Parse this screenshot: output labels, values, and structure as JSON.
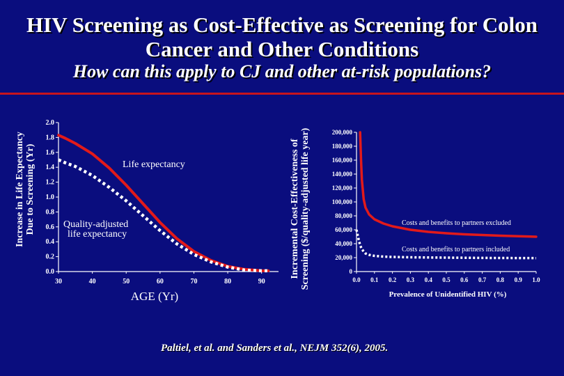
{
  "slide": {
    "title_line1": "HIV Screening as Cost-Effective as Screening for Colon",
    "title_line2": "Cancer and Other Conditions",
    "subtitle": "How can this apply to CJ and other at-risk populations?",
    "citation": "Paltiel, et al. and Sanders et al., NEJM 352(6), 2005.",
    "colors": {
      "background": "#0a0d7e",
      "accent_rule": "#c8141e",
      "red_line": "#e21a1a",
      "dashed_line": "#ffffff"
    }
  },
  "chart_data": [
    {
      "type": "line",
      "title": "",
      "xlabel": "AGE (Yr)",
      "ylabel_line1": "Increase in Life Expectancy",
      "ylabel_line2": "Due to Screening (Yr)",
      "xlim": [
        30,
        95
      ],
      "ylim": [
        0,
        2.0
      ],
      "xticks": [
        30,
        40,
        50,
        60,
        70,
        80,
        90
      ],
      "xtick_labels": [
        "30",
        "40",
        "50",
        "60",
        "70",
        "80",
        "90"
      ],
      "yticks": [
        0,
        0.2,
        0.4,
        0.6,
        0.8,
        1.0,
        1.2,
        1.4,
        1.6,
        1.8,
        2.0
      ],
      "ytick_labels": [
        "0.0",
        "0.2",
        "0.4",
        "0.6",
        "0.8",
        "1.0",
        "1.2",
        "1.4",
        "1.6",
        "1.8",
        "2.0"
      ],
      "series": [
        {
          "name": "Life expectancy",
          "style": "solid-red",
          "x": [
            30,
            32,
            35,
            40,
            45,
            50,
            55,
            60,
            65,
            70,
            75,
            80,
            85,
            90,
            92
          ],
          "y": [
            1.83,
            1.79,
            1.72,
            1.58,
            1.39,
            1.16,
            0.91,
            0.66,
            0.44,
            0.27,
            0.15,
            0.07,
            0.03,
            0.01,
            0.01
          ]
        },
        {
          "name": "Quality-adjusted life expectancy",
          "style": "dashed-white",
          "x": [
            30,
            32,
            35,
            40,
            45,
            50,
            55,
            60,
            65,
            70,
            75,
            80,
            85,
            90,
            92
          ],
          "y": [
            1.5,
            1.46,
            1.41,
            1.29,
            1.13,
            0.95,
            0.75,
            0.55,
            0.37,
            0.23,
            0.13,
            0.06,
            0.02,
            0.01,
            0.01
          ]
        }
      ],
      "annotations": {
        "life_expectancy": "Life expectancy",
        "qale_line1": "Quality-adjusted",
        "qale_line2": "life expectancy"
      }
    },
    {
      "type": "line",
      "title": "",
      "xlabel": "Prevalence of Unidentified HIV (%)",
      "ylabel_line1": "Incremental Cost-Effectiveness of",
      "ylabel_line2": "Screening ($/quality-adjusted life year)",
      "xlim": [
        0,
        1.0
      ],
      "ylim": [
        0,
        200000
      ],
      "xticks": [
        0,
        0.1,
        0.2,
        0.3,
        0.4,
        0.5,
        0.6,
        0.7,
        0.8,
        0.9,
        1.0
      ],
      "xtick_labels": [
        "0.0",
        "0.1",
        "0.2",
        "0.3",
        "0.4",
        "0.5",
        "0.6",
        "0.7",
        "0.8",
        "0.9",
        "1.0"
      ],
      "yticks": [
        0,
        20000,
        40000,
        60000,
        80000,
        100000,
        120000,
        140000,
        160000,
        180000,
        200000
      ],
      "ytick_labels": [
        "0",
        "20,000",
        "40,000",
        "60,000",
        "80,000",
        "100,000",
        "120,000",
        "140,000",
        "160,000",
        "180,000",
        "200,000"
      ],
      "series": [
        {
          "name": "Costs and benefits to partners excluded",
          "style": "solid-red",
          "x": [
            0.02,
            0.025,
            0.03,
            0.04,
            0.05,
            0.07,
            0.1,
            0.15,
            0.2,
            0.3,
            0.4,
            0.5,
            0.6,
            0.7,
            0.8,
            0.9,
            1.0
          ],
          "y": [
            200000,
            160000,
            132000,
            104000,
            92000,
            82000,
            75000,
            69000,
            65000,
            60000,
            57000,
            55000,
            53500,
            52500,
            51500,
            50700,
            50000
          ]
        },
        {
          "name": "Costs and benefits to partners included",
          "style": "dashed-white",
          "x": [
            0,
            0.01,
            0.02,
            0.03,
            0.05,
            0.07,
            0.1,
            0.15,
            0.2,
            0.3,
            0.4,
            0.5,
            0.6,
            0.7,
            0.8,
            0.9,
            1.0
          ],
          "y": [
            60000,
            48000,
            38000,
            32000,
            26000,
            24000,
            22500,
            21500,
            21000,
            20500,
            20200,
            20000,
            19800,
            19600,
            19500,
            19400,
            19300
          ]
        }
      ],
      "annotations": {
        "excluded": "Costs and benefits to partners excluded",
        "included": "Costs and benefits to partners included"
      }
    }
  ]
}
